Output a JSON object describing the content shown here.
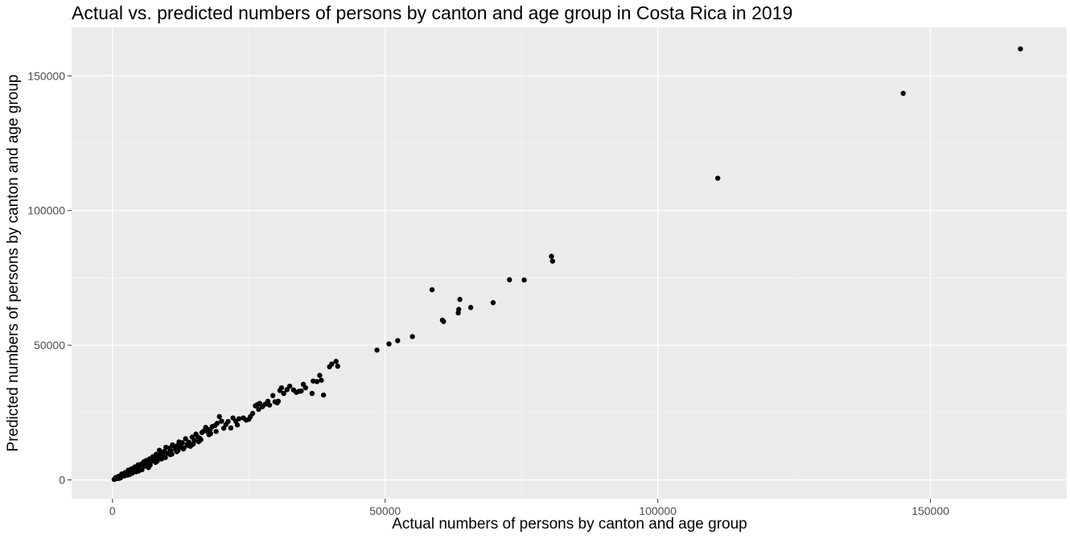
{
  "chart_data": {
    "type": "scatter",
    "title": "Actual vs. predicted numbers of persons by canton and age group in Costa Rica in 2019",
    "xlabel": "Actual numbers of persons by canton and age group",
    "ylabel": "Predicted numbers of persons by canton and age group",
    "xlim": [
      -7500,
      175000
    ],
    "ylim": [
      -7000,
      168000
    ],
    "x_ticks": [
      0,
      50000,
      100000,
      150000
    ],
    "x_tick_labels": [
      "0",
      "50000",
      "100000",
      "150000"
    ],
    "y_ticks": [
      0,
      50000,
      100000,
      150000
    ],
    "y_tick_labels": [
      "0",
      "50000",
      "100000",
      "150000"
    ],
    "grid": true,
    "legend": "none",
    "colors": {
      "panel_background": "#ebebeb",
      "grid_major": "#ffffff",
      "grid_minor": "#f5f5f5",
      "point": "#000000",
      "tick_label": "#4d4d4d",
      "tick_mark": "#333333"
    },
    "points": [
      [
        166500,
        160000
      ],
      [
        145000,
        143500
      ],
      [
        111000,
        112000
      ],
      [
        80500,
        83000
      ],
      [
        80700,
        81200
      ],
      [
        75500,
        74200
      ],
      [
        72800,
        74300
      ],
      [
        69800,
        65800
      ],
      [
        65700,
        64000
      ],
      [
        63700,
        67000
      ],
      [
        63500,
        63300
      ],
      [
        63400,
        62000
      ],
      [
        60500,
        59300
      ],
      [
        60700,
        58800
      ],
      [
        58600,
        70600
      ],
      [
        55000,
        53200
      ],
      [
        52300,
        51700
      ],
      [
        50700,
        50500
      ],
      [
        48500,
        48200
      ],
      [
        41300,
        42200
      ],
      [
        41000,
        44000
      ],
      [
        40200,
        43000
      ],
      [
        38700,
        31500
      ],
      [
        38300,
        37000
      ],
      [
        38000,
        38800
      ],
      [
        37500,
        36500
      ],
      [
        36800,
        36700
      ],
      [
        36600,
        32100
      ],
      [
        35000,
        35500
      ],
      [
        34600,
        33000
      ],
      [
        34200,
        32900
      ],
      [
        33700,
        32500
      ],
      [
        32500,
        34800
      ],
      [
        32000,
        33500
      ],
      [
        31400,
        32100
      ],
      [
        31000,
        34200
      ],
      [
        30700,
        33200
      ],
      [
        30400,
        29200
      ],
      [
        29800,
        29000
      ],
      [
        29400,
        31300
      ],
      [
        28500,
        29200
      ],
      [
        28000,
        28100
      ],
      [
        27500,
        27200
      ],
      [
        27000,
        28400
      ],
      [
        26600,
        28000
      ],
      [
        26200,
        27500
      ],
      [
        25700,
        24700
      ],
      [
        25300,
        23500
      ],
      [
        25000,
        22500
      ],
      [
        24500,
        22200
      ],
      [
        23200,
        22700
      ],
      [
        22600,
        21800
      ],
      [
        22100,
        23000
      ],
      [
        21700,
        19300
      ],
      [
        21200,
        21700
      ],
      [
        20800,
        20600
      ],
      [
        20400,
        19200
      ],
      [
        20000,
        21800
      ],
      [
        19600,
        23500
      ],
      [
        19200,
        21000
      ],
      [
        18800,
        20200
      ],
      [
        18300,
        19800
      ],
      [
        17900,
        18700
      ],
      [
        17500,
        17800
      ],
      [
        17100,
        19500
      ],
      [
        16800,
        18200
      ],
      [
        16400,
        17600
      ],
      [
        16000,
        15500
      ],
      [
        15600,
        16000
      ],
      [
        15300,
        17000
      ],
      [
        15000,
        14600
      ],
      [
        14600,
        15900
      ],
      [
        14300,
        12500
      ],
      [
        14000,
        14000
      ],
      [
        13700,
        13200
      ],
      [
        13400,
        15300
      ],
      [
        13100,
        11900
      ],
      [
        12800,
        13800
      ],
      [
        12500,
        12200
      ],
      [
        12200,
        14100
      ],
      [
        11900,
        12700
      ],
      [
        11600,
        11300
      ],
      [
        11300,
        12400
      ],
      [
        11000,
        13000
      ],
      [
        10700,
        10800
      ],
      [
        10400,
        11800
      ],
      [
        10100,
        9900
      ],
      [
        9800,
        12100
      ],
      [
        9500,
        10600
      ],
      [
        9200,
        9200
      ],
      [
        8900,
        9800
      ],
      [
        8600,
        11000
      ],
      [
        8300,
        8700
      ],
      [
        8000,
        9500
      ],
      [
        7700,
        7600
      ],
      [
        7400,
        8600
      ],
      [
        7100,
        6900
      ],
      [
        6800,
        7800
      ],
      [
        6500,
        5800
      ],
      [
        6200,
        7200
      ],
      [
        5900,
        5100
      ],
      [
        5600,
        6300
      ],
      [
        5300,
        5900
      ],
      [
        5000,
        4400
      ],
      [
        4700,
        5600
      ],
      [
        4400,
        3900
      ],
      [
        4100,
        4800
      ],
      [
        3800,
        3300
      ],
      [
        3500,
        4100
      ],
      [
        3200,
        2900
      ],
      [
        2900,
        3600
      ],
      [
        2600,
        2300
      ],
      [
        2300,
        2700
      ],
      [
        2000,
        1700
      ],
      [
        1700,
        2200
      ],
      [
        1400,
        1200
      ],
      [
        1100,
        1300
      ],
      [
        800,
        700
      ],
      [
        500,
        400
      ],
      [
        300,
        200
      ],
      [
        19000,
        18000
      ],
      [
        17700,
        16800
      ],
      [
        15800,
        14200
      ],
      [
        12000,
        10900
      ],
      [
        10900,
        9600
      ],
      [
        9000,
        7800
      ],
      [
        7900,
        6500
      ],
      [
        6600,
        4600
      ],
      [
        5400,
        3800
      ],
      [
        4300,
        3000
      ],
      [
        3100,
        2000
      ],
      [
        2200,
        1500
      ],
      [
        1500,
        800
      ],
      [
        900,
        500
      ],
      [
        600,
        900
      ],
      [
        1200,
        600
      ],
      [
        2700,
        1800
      ],
      [
        3600,
        2500
      ],
      [
        4800,
        3300
      ],
      [
        5800,
        6800
      ],
      [
        6900,
        5500
      ],
      [
        8200,
        7000
      ],
      [
        9700,
        8300
      ],
      [
        10600,
        9400
      ],
      [
        11800,
        10500
      ],
      [
        13000,
        11500
      ],
      [
        13900,
        12800
      ],
      [
        14800,
        13300
      ],
      [
        16200,
        14900
      ],
      [
        18000,
        17200
      ],
      [
        22900,
        20400
      ],
      [
        24000,
        23000
      ],
      [
        26800,
        26200
      ],
      [
        28800,
        27800
      ],
      [
        30200,
        28600
      ],
      [
        33200,
        33400
      ],
      [
        35400,
        34200
      ],
      [
        39800,
        42000
      ]
    ]
  }
}
